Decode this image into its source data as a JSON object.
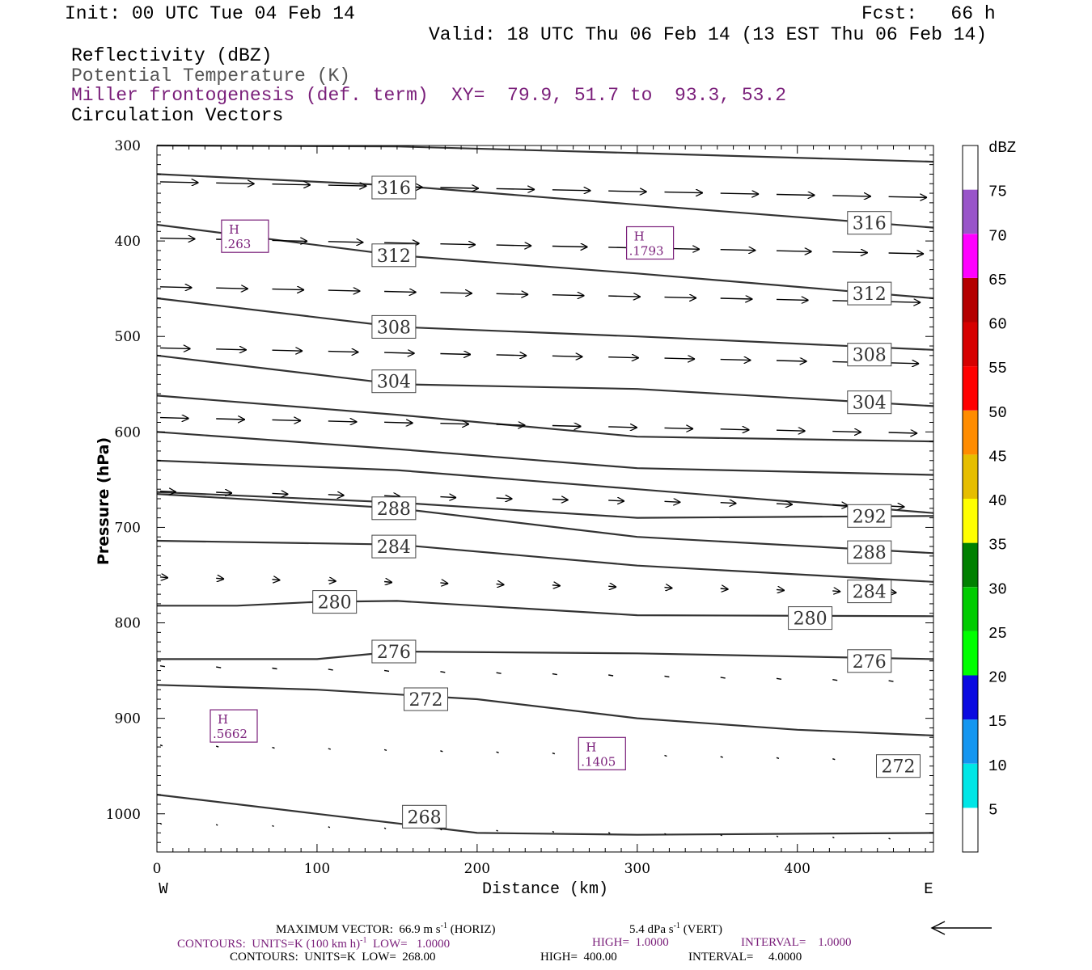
{
  "header": {
    "init": "Init: 00 UTC Tue 04 Feb 14",
    "fcst": "Fcst:   66 h",
    "valid": "Valid: 18 UTC Thu 06 Feb 14 (13 EST Thu 06 Feb 14)",
    "field1": "Reflectivity (dBZ)",
    "field2": "Potential Temperature (K)",
    "field3": "Miller frontogenesis (def. term)",
    "xy": "XY=  79.9, 51.7 to  93.3, 53.2",
    "field4": "Circulation Vectors"
  },
  "colors": {
    "purple": "#7a1f7a",
    "contour": "#333333",
    "dbz_bins": [
      "#ffffff",
      "#00e6e6",
      "#1496f0",
      "#0a0ae0",
      "#00ff00",
      "#00cc00",
      "#008000",
      "#ffff00",
      "#e6be00",
      "#ff8c00",
      "#ff0000",
      "#d60000",
      "#b40000",
      "#ff00ff",
      "#9955c9",
      "#ffffff"
    ]
  },
  "chart_data": {
    "type": "cross-section",
    "xlabel": "Distance (km)",
    "ylabel": "Pressure (hPa)",
    "xlim": [
      0,
      485
    ],
    "ylim": [
      1040,
      300
    ],
    "x_ticks": [
      0,
      100,
      200,
      300,
      400
    ],
    "y_ticks": [
      300,
      400,
      500,
      600,
      700,
      800,
      900,
      1000
    ],
    "x_end_labels": {
      "left": "W",
      "right": "E"
    },
    "colorbar": {
      "label": "dBZ",
      "ticks": [
        "5",
        "10",
        "15",
        "20",
        "25",
        "30",
        "35",
        "40",
        "45",
        "50",
        "55",
        "60",
        "65",
        "70",
        "75"
      ]
    },
    "theta_contours": [
      {
        "value": 268,
        "points": [
          [
            0,
            980
          ],
          [
            100,
            1000
          ],
          [
            200,
            1020
          ],
          [
            300,
            1022
          ],
          [
            485,
            1020
          ]
        ]
      },
      {
        "value": 272,
        "points": [
          [
            0,
            865
          ],
          [
            100,
            870
          ],
          [
            200,
            880
          ],
          [
            300,
            900
          ],
          [
            400,
            912
          ],
          [
            485,
            918
          ]
        ]
      },
      {
        "value": 276,
        "points": [
          [
            0,
            838
          ],
          [
            100,
            838
          ],
          [
            150,
            830
          ],
          [
            300,
            832
          ],
          [
            485,
            838
          ]
        ]
      },
      {
        "value": 280,
        "points": [
          [
            0,
            782
          ],
          [
            50,
            782
          ],
          [
            100,
            778
          ],
          [
            150,
            777
          ],
          [
            300,
            792
          ],
          [
            485,
            793
          ]
        ]
      },
      {
        "value": 284,
        "points": [
          [
            0,
            714
          ],
          [
            150,
            718
          ],
          [
            300,
            740
          ],
          [
            485,
            757
          ]
        ]
      },
      {
        "value": 288,
        "points": [
          [
            0,
            665
          ],
          [
            150,
            680
          ],
          [
            300,
            710
          ],
          [
            485,
            727
          ]
        ]
      },
      {
        "value": 292,
        "points": [
          [
            0,
            663
          ],
          [
            150,
            674
          ],
          [
            300,
            690
          ],
          [
            485,
            688
          ]
        ]
      },
      {
        "value": 296,
        "points": [
          [
            0,
            630
          ],
          [
            150,
            640
          ],
          [
            300,
            660
          ],
          [
            485,
            685
          ]
        ]
      },
      {
        "value": 300,
        "points": [
          [
            0,
            600
          ],
          [
            150,
            618
          ],
          [
            300,
            638
          ],
          [
            485,
            645
          ]
        ]
      },
      {
        "value": 304,
        "points": [
          [
            0,
            562
          ],
          [
            150,
            582
          ],
          [
            300,
            605
          ],
          [
            485,
            610
          ]
        ]
      },
      {
        "value": 308,
        "points": [
          [
            0,
            520
          ],
          [
            150,
            550
          ],
          [
            300,
            555
          ],
          [
            485,
            573
          ]
        ]
      },
      {
        "value": 312,
        "points": [
          [
            0,
            460
          ],
          [
            150,
            490
          ],
          [
            300,
            500
          ],
          [
            485,
            514
          ]
        ]
      },
      {
        "value": 316,
        "points": [
          [
            0,
            383
          ],
          [
            150,
            415
          ],
          [
            300,
            434
          ],
          [
            485,
            460
          ]
        ]
      },
      {
        "value": 320,
        "points": [
          [
            0,
            330
          ],
          [
            150,
            342
          ],
          [
            300,
            362
          ],
          [
            485,
            386
          ]
        ]
      },
      {
        "value": 324,
        "points": [
          [
            0,
            300
          ],
          [
            150,
            301
          ],
          [
            300,
            308
          ],
          [
            485,
            317
          ]
        ]
      }
    ],
    "contour_labels": [
      {
        "text": "316",
        "x": 148,
        "p": 344
      },
      {
        "text": "316",
        "x": 445,
        "p": 381
      },
      {
        "text": "312",
        "x": 148,
        "p": 415
      },
      {
        "text": "312",
        "x": 445,
        "p": 455
      },
      {
        "text": "308",
        "x": 148,
        "p": 490
      },
      {
        "text": "308",
        "x": 445,
        "p": 519
      },
      {
        "text": "304",
        "x": 148,
        "p": 547
      },
      {
        "text": "304",
        "x": 445,
        "p": 569
      },
      {
        "text": "288",
        "x": 148,
        "p": 680
      },
      {
        "text": "292",
        "x": 445,
        "p": 688
      },
      {
        "text": "284",
        "x": 148,
        "p": 720
      },
      {
        "text": "288",
        "x": 445,
        "p": 726
      },
      {
        "text": "280",
        "x": 111,
        "p": 778
      },
      {
        "text": "284",
        "x": 445,
        "p": 767
      },
      {
        "text": "280",
        "x": 408,
        "p": 795
      },
      {
        "text": "276",
        "x": 148,
        "p": 830
      },
      {
        "text": "276",
        "x": 445,
        "p": 840
      },
      {
        "text": "272",
        "x": 168,
        "p": 880
      },
      {
        "text": "272",
        "x": 463,
        "p": 950
      },
      {
        "text": "268",
        "x": 167,
        "p": 1003
      }
    ],
    "frontogenesis_maxima": [
      {
        "label": "H",
        "value": ".263",
        "x": 55,
        "p": 395
      },
      {
        "label": "H",
        "value": ".1793",
        "x": 308,
        "p": 402
      },
      {
        "label": "H",
        "value": ".5662",
        "x": 48,
        "p": 908
      },
      {
        "label": "H",
        "value": ".1405",
        "x": 278,
        "p": 937
      }
    ],
    "circulation_vector_rows": [
      {
        "p": 338,
        "length_km": 24
      },
      {
        "p": 397,
        "length_km": 22
      },
      {
        "p": 448,
        "length_km": 20
      },
      {
        "p": 512,
        "length_km": 19
      },
      {
        "p": 585,
        "length_km": 18
      },
      {
        "p": 662,
        "length_km": 10
      },
      {
        "p": 752,
        "length_km": 5
      },
      {
        "p": 845,
        "length_km": 3
      },
      {
        "p": 928,
        "length_km": 1.5
      },
      {
        "p": 1010,
        "length_km": 1
      }
    ],
    "reference_vector": "left-pointing"
  },
  "footer": {
    "line1a": "MAXIMUM VECTOR:  66.9 m s",
    "line1a_sup": "-1",
    "line1b": " (HORIZ)",
    "line1c": "5.4 dPa s",
    "line1c_sup": "-1",
    "line1d": " (VERT)",
    "line2a": "CONTOURS:  UNITS=K (100 km h)",
    "line2a_sup": "-1",
    "line2b": "  LOW=   1.0000",
    "line2c": "HIGH=  1.0000",
    "line2d": "INTERVAL=    1.0000",
    "line3a": "CONTOURS:  UNITS=K  LOW=  268.00",
    "line3b": "HIGH=  400.00",
    "line3c": "INTERVAL=     4.0000"
  }
}
